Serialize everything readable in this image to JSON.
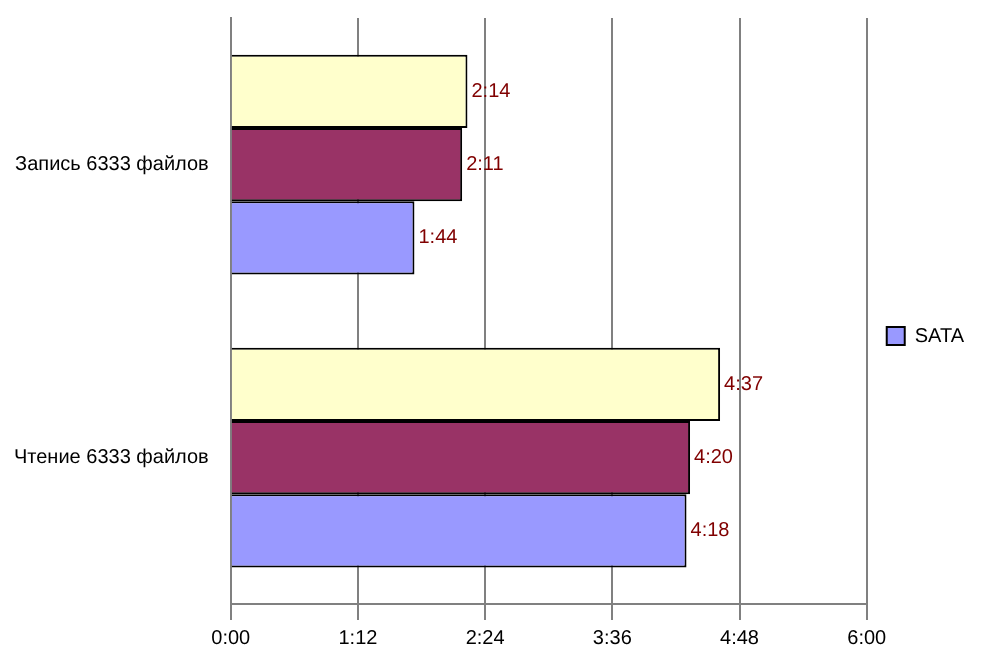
{
  "chart_data": {
    "type": "bar",
    "orientation": "horizontal",
    "categories": [
      "Запись 6333 файлов",
      "Чтение 6333 файлов"
    ],
    "series": [
      {
        "color": "#ffffcc",
        "values": [
          134,
          277
        ],
        "value_labels": [
          "2:14",
          "4:37"
        ]
      },
      {
        "color": "#993366",
        "values": [
          131,
          260
        ],
        "value_labels": [
          "2:11",
          "4:20"
        ]
      },
      {
        "name": "SATA",
        "color": "#9999ff",
        "values": [
          104,
          258
        ],
        "value_labels": [
          "1:44",
          "4:18"
        ]
      }
    ],
    "xlim": [
      0,
      360
    ],
    "xticks": [
      {
        "value": 0,
        "label": "0:00"
      },
      {
        "value": 72,
        "label": "1:12"
      },
      {
        "value": 144,
        "label": "2:24"
      },
      {
        "value": 216,
        "label": "3:36"
      },
      {
        "value": 288,
        "label": "4:48"
      },
      {
        "value": 360,
        "label": "6:00"
      }
    ],
    "grid": "x",
    "legend": "right"
  }
}
